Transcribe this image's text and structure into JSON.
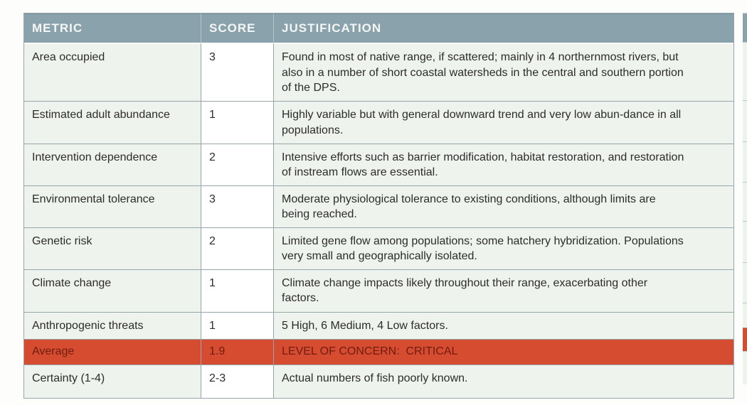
{
  "table": {
    "headers": {
      "metric": "METRIC",
      "score": "SCORE",
      "justification": "JUSTIFICATION"
    },
    "rows": [
      {
        "type": "normal",
        "metric": "Area occupied",
        "score": "3",
        "justification": "Found in most of native range, if scattered; mainly in 4 northernmost rivers, but also in a number of short coastal watersheds in the central and southern portion of the DPS."
      },
      {
        "type": "normal",
        "metric": "Estimated adult abundance",
        "score": "1",
        "justification": "Highly variable but with general downward trend and very low abun-dance in all populations."
      },
      {
        "type": "normal",
        "metric": "Intervention dependence",
        "score": "2",
        "justification": "Intensive efforts such as barrier modification, habitat restoration, and restoration of instream flows are essential."
      },
      {
        "type": "normal",
        "metric": "Environmental tolerance",
        "score": "3",
        "justification": "Moderate physiological tolerance to existing conditions, although limits are being reached."
      },
      {
        "type": "normal",
        "metric": "Genetic risk",
        "score": "2",
        "justification": "Limited gene flow among populations; some hatchery hybridization. Populations very small and geographically isolated."
      },
      {
        "type": "normal",
        "metric": "Climate change",
        "score": "1",
        "justification": "Climate change impacts likely throughout their range, exacerbating other factors."
      },
      {
        "type": "normal",
        "metric": "Anthropogenic threats",
        "score": "1",
        "justification": "5 High, 6 Medium, 4 Low factors."
      },
      {
        "type": "highlight",
        "metric": "Average",
        "score": "1.9",
        "justification": "LEVEL OF CONCERN:  CRITICAL"
      },
      {
        "type": "normal",
        "metric": "Certainty (1-4)",
        "score": "2-3",
        "justification": "Actual numbers of fish poorly known."
      }
    ]
  },
  "colors": {
    "header_bg": "#8aa2ab",
    "header_text": "#f4f6f5",
    "row_bg": "#eef4ed",
    "score_bg": "#ffffff",
    "highlight_bg": "#d64c30",
    "highlight_text": "#701c0f",
    "border": "#96a6ab",
    "body_text": "#2d2c2b"
  }
}
